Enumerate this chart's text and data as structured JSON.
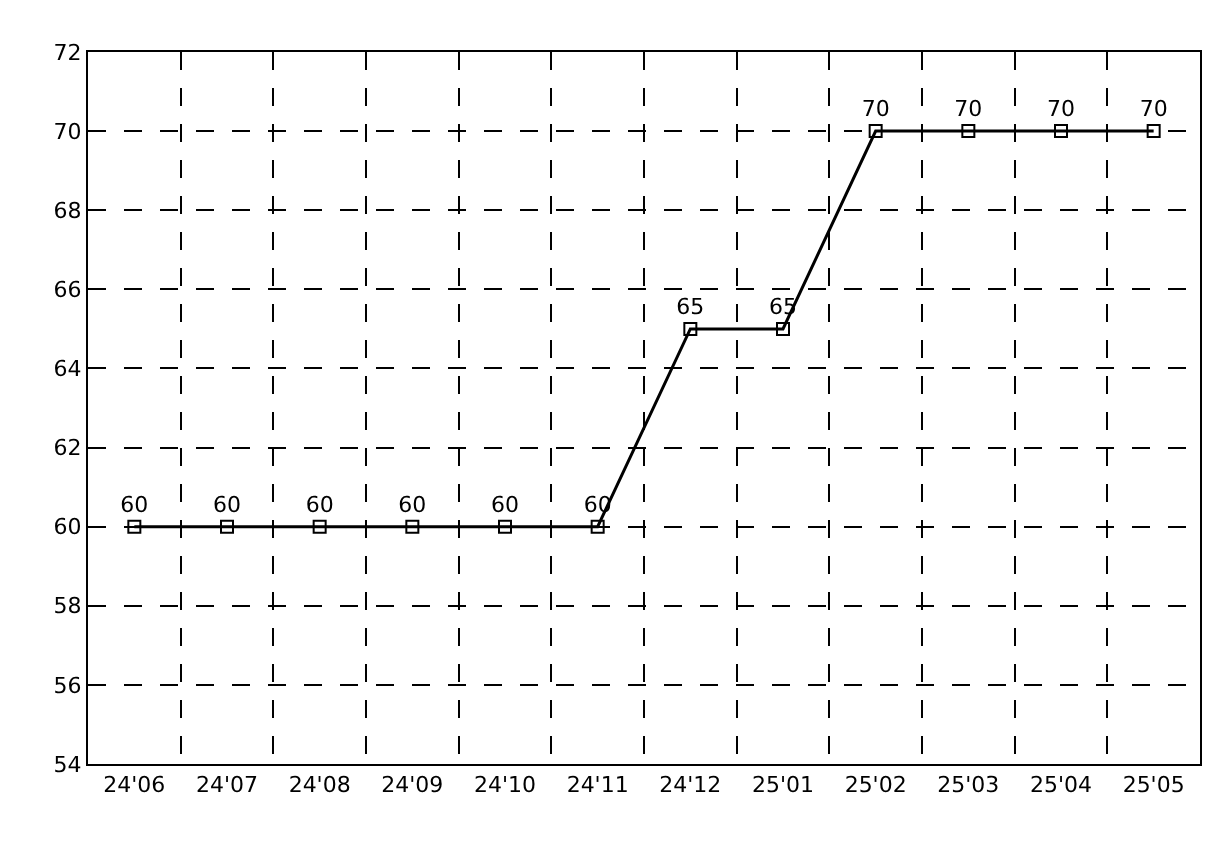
{
  "chart_data": {
    "type": "line",
    "categories": [
      "24'06",
      "24'07",
      "24'08",
      "24'09",
      "24'10",
      "24'11",
      "24'12",
      "25'01",
      "25'02",
      "25'03",
      "25'04",
      "25'05"
    ],
    "series": [
      {
        "color": "#000000",
        "values": [
          60,
          60,
          60,
          60,
          60,
          60,
          65,
          65,
          70,
          70,
          70,
          70
        ]
      }
    ],
    "ylim": [
      54,
      72
    ],
    "yticks": [
      54,
      56,
      58,
      60,
      62,
      64,
      66,
      68,
      70,
      72
    ],
    "grid": true,
    "marker": "square",
    "line_style": "solid",
    "data_labels": true
  }
}
